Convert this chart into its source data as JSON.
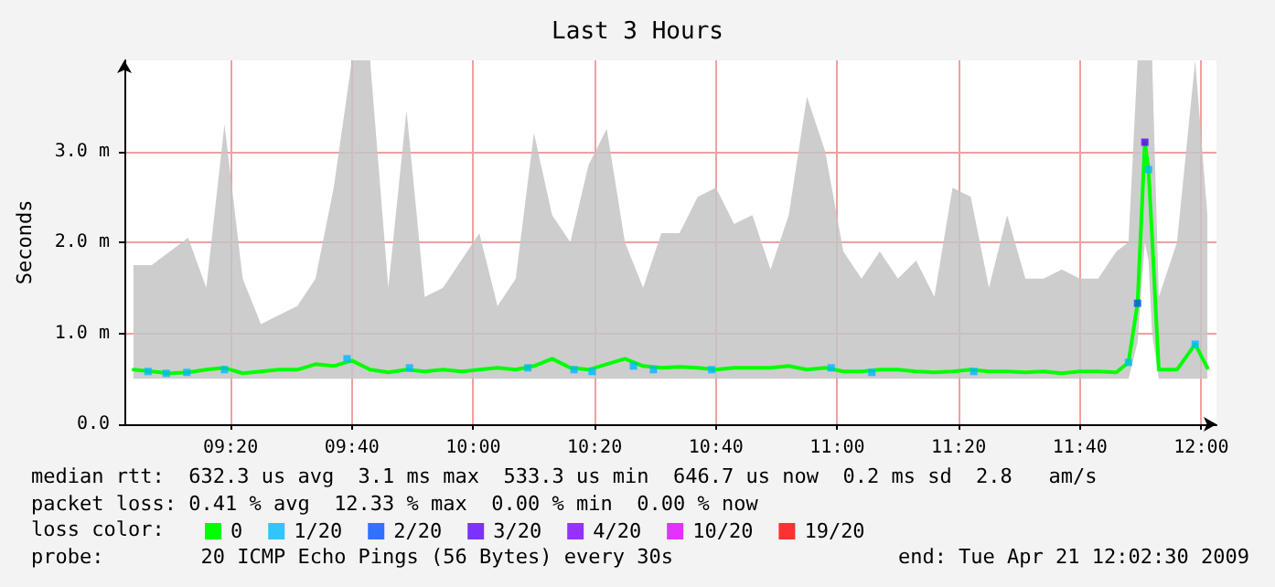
{
  "chart_data": {
    "type": "line",
    "title": "Last 3 Hours",
    "ylabel": "Seconds",
    "legend_title": "loss color:",
    "legend": "bottom",
    "grid": true,
    "xlim": [
      9.0417,
      12.0417
    ],
    "xticks": [
      {
        "value": 9.3333,
        "label": "09:20"
      },
      {
        "value": 9.6667,
        "label": "09:40"
      },
      {
        "value": 10,
        "label": "10:00"
      },
      {
        "value": 10.3333,
        "label": "10:20"
      },
      {
        "value": 10.6667,
        "label": "10:40"
      },
      {
        "value": 11,
        "label": "11:00"
      },
      {
        "value": 11.3333,
        "label": "11:20"
      },
      {
        "value": 11.6667,
        "label": "11:40"
      },
      {
        "value": 12,
        "label": "12:00"
      }
    ],
    "ylim": [
      0,
      4
    ],
    "yticks": [
      {
        "value": 0,
        "label": "0.0"
      },
      {
        "value": 1,
        "label": "1.0 m"
      },
      {
        "value": 2,
        "label": "2.0 m"
      },
      {
        "value": 3,
        "label": "3.0 m"
      }
    ],
    "series": [
      {
        "name": "0",
        "color": "#00ff00",
        "x": [
          9.0667,
          9.1167,
          9.1667,
          9.2167,
          9.2667,
          9.3167,
          9.3667,
          9.4167,
          9.4667,
          9.5167,
          9.5667,
          9.6167,
          9.6667,
          9.7167,
          9.7667,
          9.8167,
          9.8667,
          9.9167,
          9.9667,
          10.0167,
          10.0667,
          10.1167,
          10.1667,
          10.2167,
          10.2667,
          10.3167,
          10.3667,
          10.4167,
          10.4667,
          10.5167,
          10.5667,
          10.6167,
          10.6667,
          10.7167,
          10.7667,
          10.8167,
          10.8667,
          10.9167,
          10.9667,
          11.0167,
          11.0667,
          11.1167,
          11.1667,
          11.2167,
          11.2667,
          11.3167,
          11.3667,
          11.4167,
          11.4667,
          11.5167,
          11.5667,
          11.6167,
          11.6667,
          11.7167,
          11.7667,
          11.8,
          11.825,
          11.845,
          11.855,
          11.865,
          11.8833,
          11.9333,
          11.9833,
          12.0167
        ],
        "values": [
          0.6,
          0.58,
          0.56,
          0.57,
          0.6,
          0.62,
          0.56,
          0.58,
          0.6,
          0.6,
          0.66,
          0.64,
          0.7,
          0.6,
          0.57,
          0.6,
          0.58,
          0.6,
          0.58,
          0.6,
          0.62,
          0.6,
          0.64,
          0.72,
          0.62,
          0.6,
          0.66,
          0.72,
          0.64,
          0.62,
          0.63,
          0.62,
          0.6,
          0.62,
          0.62,
          0.62,
          0.64,
          0.6,
          0.62,
          0.58,
          0.58,
          0.6,
          0.6,
          0.58,
          0.57,
          0.58,
          0.6,
          0.58,
          0.58,
          0.57,
          0.58,
          0.56,
          0.58,
          0.58,
          0.57,
          0.68,
          1.33,
          3.1,
          2.8,
          2.05,
          0.6,
          0.6,
          0.88,
          0.62
        ],
        "lower": [
          0.5,
          0.5,
          0.5,
          0.5,
          0.5,
          0.5,
          0.5,
          0.5,
          0.5,
          0.5,
          0.5,
          0.5,
          0.5,
          0.5,
          0.5,
          0.5,
          0.5,
          0.5,
          0.5,
          0.5,
          0.5,
          0.5,
          0.5,
          0.5,
          0.5,
          0.5,
          0.5,
          0.5,
          0.5,
          0.5,
          0.5,
          0.5,
          0.5,
          0.5,
          0.5,
          0.5,
          0.5,
          0.5,
          0.5,
          0.5,
          0.5,
          0.5,
          0.5,
          0.5,
          0.5,
          0.5,
          0.5,
          0.5,
          0.5,
          0.5,
          0.5,
          0.5,
          0.5,
          0.5,
          0.5,
          0.5,
          0.9,
          2.0,
          1.8,
          1.0,
          0.5,
          0.5,
          0.5,
          0.5
        ],
        "upper": [
          1.75,
          1.75,
          1.9,
          2.05,
          1.5,
          3.3,
          1.6,
          1.1,
          1.2,
          1.3,
          1.6,
          2.6,
          4.0,
          4.0,
          1.5,
          3.45,
          1.4,
          1.5,
          1.8,
          2.1,
          1.3,
          1.6,
          3.2,
          2.3,
          2.0,
          2.85,
          3.25,
          2.0,
          1.5,
          2.1,
          2.1,
          2.5,
          2.6,
          2.2,
          2.3,
          1.7,
          2.3,
          3.6,
          3.0,
          1.9,
          1.6,
          1.9,
          1.6,
          1.8,
          1.4,
          2.6,
          2.5,
          1.5,
          2.3,
          1.6,
          1.6,
          1.7,
          1.6,
          1.6,
          1.9,
          2.0,
          4.0,
          4.0,
          4.0,
          4.0,
          1.4,
          2.0,
          4.0,
          2.3
        ]
      },
      {
        "name": "1/20",
        "type": "scatter",
        "color": "#00b8ff",
        "x": [
          9.1067,
          9.1567,
          9.2133,
          9.3167,
          9.6533,
          9.825,
          10.15,
          10.2767,
          10.3267,
          10.44,
          10.495,
          10.655,
          10.9833,
          11.095,
          11.375,
          11.8,
          11.855,
          11.9833
        ],
        "values": [
          0.58,
          0.56,
          0.57,
          0.6,
          0.72,
          0.62,
          0.62,
          0.6,
          0.58,
          0.64,
          0.6,
          0.6,
          0.62,
          0.57,
          0.58,
          0.68,
          2.8,
          0.88
        ]
      },
      {
        "name": "2/20",
        "type": "scatter",
        "color": "#0050ff",
        "x": [
          11.825
        ],
        "values": [
          1.33
        ]
      },
      {
        "name": "3/20",
        "type": "scatter",
        "color": "#5e00ff",
        "x": [
          11.845
        ],
        "values": [
          3.1
        ]
      },
      {
        "name": "4/20",
        "type": "scatter",
        "color": "#8000ff"
      },
      {
        "name": "10/20",
        "type": "scatter",
        "color": "#e000ff"
      },
      {
        "name": "19/20",
        "type": "scatter",
        "color": "#ff0000"
      }
    ],
    "annotations": [
      "median rtt:  632.3 us avg  3.1 ms max  533.3 us min  646.7 us now  0.2 ms sd  2.8   am/s",
      "packet loss: 0.41 % avg  12.33 % max  0.00 % min  0.00 % now",
      "probe:        20 ICMP Echo Pings (56 Bytes) every 30s",
      "end: Tue Apr 21 12:02:30 2009"
    ]
  }
}
